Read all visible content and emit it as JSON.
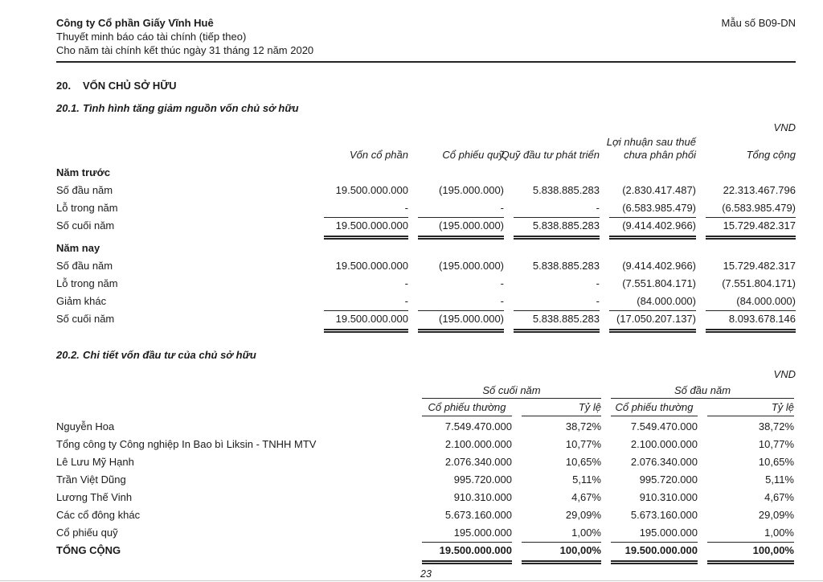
{
  "header": {
    "company": "Công ty Cổ phần Giấy Vĩnh Huê",
    "subtitle": "Thuyết minh báo cáo tài chính (tiếp theo)",
    "period": "Cho năm tài chính kết thúc ngày 31 tháng 12 năm 2020",
    "form_no": "Mẫu số B09-DN"
  },
  "section20": {
    "number": "20.",
    "title": "VỐN CHỦ SỞ HỮU"
  },
  "section201": {
    "number": "20.1.",
    "title": "Tình hình tăng giảm nguồn vốn chủ sở hữu",
    "currency": "VND",
    "table": {
      "columns": [
        "Vốn cổ phần",
        "Cổ phiếu quỹ",
        "Quỹ đầu tư phát triển",
        "Lợi nhuận sau thuế chưa phân phối",
        "Tổng cộng"
      ],
      "rows": [
        {
          "label": "Năm trước",
          "type": "group"
        },
        {
          "label": "Số đầu năm",
          "type": "data",
          "values": [
            "19.500.000.000",
            "(195.000.000)",
            "5.838.885.283",
            "(2.830.417.487)",
            "22.313.467.796"
          ]
        },
        {
          "label": "Lỗ trong năm",
          "type": "data",
          "values": [
            "-",
            "-",
            "-",
            "(6.583.985.479)",
            "(6.583.985.479)"
          ]
        },
        {
          "label": "Số cuối năm",
          "type": "total",
          "values": [
            "19.500.000.000",
            "(195.000.000)",
            "5.838.885.283",
            "(9.414.402.966)",
            "15.729.482.317"
          ]
        },
        {
          "label": "Năm nay",
          "type": "group"
        },
        {
          "label": "Số đầu năm",
          "type": "data",
          "values": [
            "19.500.000.000",
            "(195.000.000)",
            "5.838.885.283",
            "(9.414.402.966)",
            "15.729.482.317"
          ]
        },
        {
          "label": "Lỗ trong năm",
          "type": "data",
          "values": [
            "-",
            "-",
            "-",
            "(7.551.804.171)",
            "(7.551.804.171)"
          ]
        },
        {
          "label": "Giảm khác",
          "type": "data",
          "values": [
            "-",
            "-",
            "-",
            "(84.000.000)",
            "(84.000.000)"
          ]
        },
        {
          "label": "Số cuối năm",
          "type": "total",
          "values": [
            "19.500.000.000",
            "(195.000.000)",
            "5.838.885.283",
            "(17.050.207.137)",
            "8.093.678.146"
          ]
        }
      ]
    }
  },
  "section202": {
    "number": "20.2.",
    "title": "Chi tiết vốn đầu tư của chủ sở hữu",
    "currency": "VND",
    "table": {
      "groups": [
        "Số cuối năm",
        "Số đầu năm"
      ],
      "columns": [
        "Cổ phiếu thường",
        "Tỷ lệ",
        "Cổ phiếu thường",
        "Tỷ lệ"
      ],
      "rows": [
        {
          "label": "Nguyễn Hoa",
          "values": [
            "7.549.470.000",
            "38,72%",
            "7.549.470.000",
            "38,72%"
          ]
        },
        {
          "label": "Tổng công ty Công nghiệp In Bao bì Liksin - TNHH MTV",
          "values": [
            "2.100.000.000",
            "10,77%",
            "2.100.000.000",
            "10,77%"
          ]
        },
        {
          "label": "Lê Lưu Mỹ Hạnh",
          "values": [
            "2.076.340.000",
            "10,65%",
            "2.076.340.000",
            "10,65%"
          ]
        },
        {
          "label": "Trần Việt Dũng",
          "values": [
            "995.720.000",
            "5,11%",
            "995.720.000",
            "5,11%"
          ]
        },
        {
          "label": "Lương Thế Vinh",
          "values": [
            "910.310.000",
            "4,67%",
            "910.310.000",
            "4,67%"
          ]
        },
        {
          "label": "Các cổ đông khác",
          "values": [
            "5.673.160.000",
            "29,09%",
            "5.673.160.000",
            "29,09%"
          ]
        },
        {
          "label": "Cổ phiếu quỹ",
          "values": [
            "195.000.000",
            "1,00%",
            "195.000.000",
            "1,00%"
          ]
        },
        {
          "label": "TỔNG CỘNG",
          "type": "total",
          "values": [
            "19.500.000.000",
            "100,00%",
            "19.500.000.000",
            "100,00%"
          ]
        }
      ]
    }
  },
  "footer": {
    "page_number": "23"
  }
}
